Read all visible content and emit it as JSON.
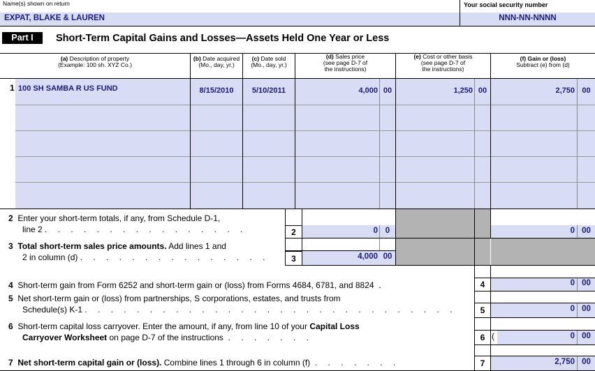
{
  "header": {
    "names_label": "Name(s) shown on return",
    "names_value": "EXPAT, BLAKE & LAUREN",
    "ssn_label": "Your social security number",
    "ssn_value": "NNN-NN-NNNN"
  },
  "part": {
    "badge": "Part I",
    "title": "Short-Term Capital Gains and Losses—Assets Held One Year or Less"
  },
  "columns": {
    "a_letter": "(a)",
    "a_text": " Description of property",
    "a_example": "(Example: 100 sh. XYZ Co.)",
    "b_letter": "(b)",
    "b_text": " Date acquired",
    "b_sub": "(Mo., day, yr.)",
    "c_letter": "(c)",
    "c_text": " Date sold",
    "c_sub": "(Mo., day, yr.)",
    "d_letter": "(d)",
    "d_text": " Sales price",
    "d_sub1": "(see page D-7 of",
    "d_sub2": "the instructions)",
    "e_letter": "(e)",
    "e_text": " Cost or other basis",
    "e_sub1": "(see page D-7 of",
    "e_sub2": "the instructions)",
    "f_letter": "(f)",
    "f_text": " Gain or (loss)",
    "f_sub": "Subtract (e) from (d)"
  },
  "row1": {
    "line": "1",
    "description": "100 SH SAMBA R US FUND",
    "date_acquired": "8/15/2010",
    "date_sold": "5/10/2011",
    "sales_price": "4,000",
    "sales_cents": "00",
    "cost_basis": "1,250",
    "cost_cents": "00",
    "gain": "2,750",
    "gain_cents": "00"
  },
  "line2": {
    "num": "2",
    "text1": "Enter your short-term totals, if any, from Schedule D-1,",
    "text2": "line 2",
    "box": "2",
    "sales": "0",
    "sales_cents": "0",
    "gain": "0",
    "gain_cents": "00"
  },
  "line3": {
    "num": "3",
    "bold": "Total short-term sales price amounts.",
    "text1": " Add lines 1 and",
    "text2": "2 in column (d)",
    "box": "3",
    "sales": "4,000",
    "sales_cents": "00"
  },
  "line4": {
    "num": "4",
    "text": "Short-term gain from Form 6252 and short-term gain or (loss) from Forms 4684, 6781, and 8824",
    "box": "4",
    "value": "0",
    "cents": "00"
  },
  "line5": {
    "num": "5",
    "text1": "Net short-term gain or (loss) from partnerships, S corporations, estates, and trusts from",
    "text2": "Schedule(s) K-1",
    "box": "5",
    "value": "0",
    "cents": "00"
  },
  "line6": {
    "num": "6",
    "text1": "Short-term capital loss carryover. Enter the amount, if any, from line 10 of your ",
    "bold1": "Capital Loss",
    "bold2": "Carryover Worksheet",
    "text2": " on page D-7 of the instructions",
    "box": "6",
    "paren": "(",
    "value": "0",
    "cents": "00"
  },
  "line7": {
    "num": "7",
    "bold": "Net short-term capital gain or (loss).",
    "text": " Combine lines 1 through 6 in column (f)",
    "box": "7",
    "value": "2,750",
    "cents": "00"
  },
  "dots": {
    "l2": ". . . . . . . . . . . . . . . .",
    "l3": ". . . . . . . . . . . . . . .",
    "l4": ".",
    "l5": ". . . . . . . . . . . . . . . . . . . . . . . . . . . . .",
    "l6": ". . . . . . .",
    "l7": ". . . . . . ."
  }
}
